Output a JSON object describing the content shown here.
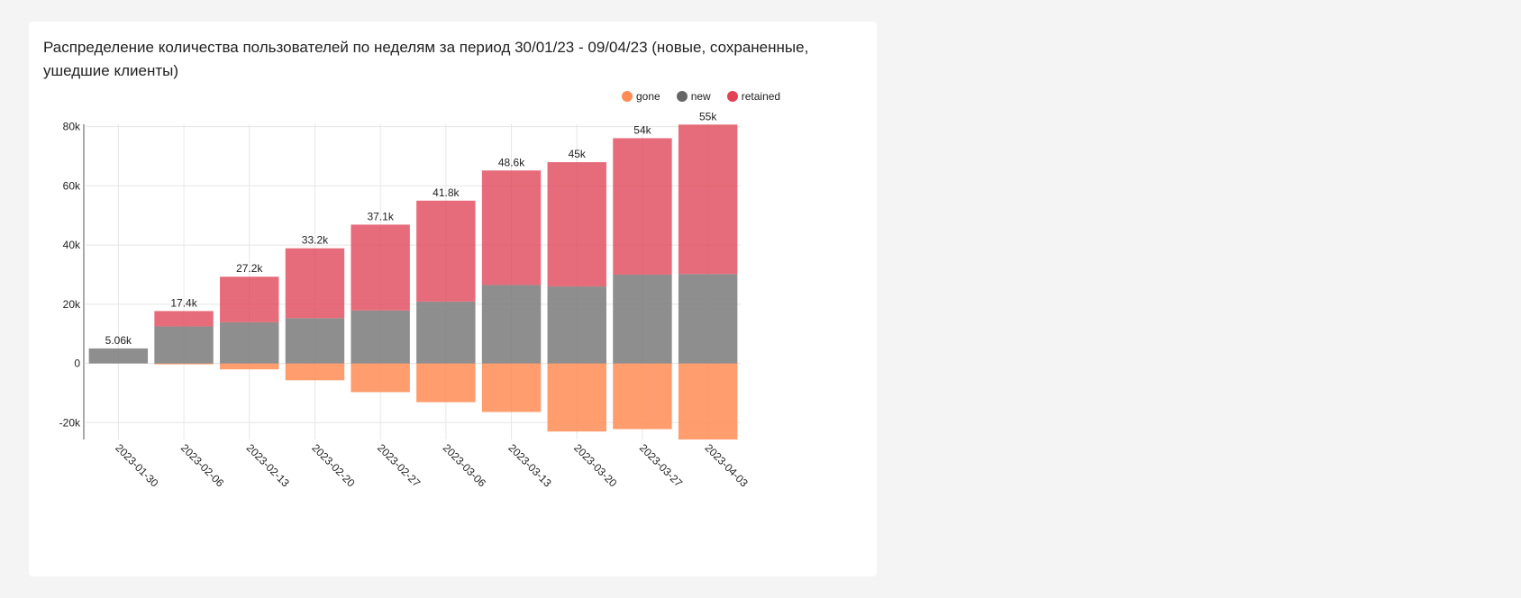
{
  "chart_data": {
    "type": "bar",
    "stacked": true,
    "title": "Распределение количества пользователей по неделям за период 30/01/23 - 09/04/23 (новые, сохраненные, ушедшие клиенты)",
    "categories": [
      "2023-01-30",
      "2023-02-06",
      "2023-02-13",
      "2023-02-20",
      "2023-02-27",
      "2023-03-06",
      "2023-03-13",
      "2023-03-20",
      "2023-03-27",
      "2023-04-03"
    ],
    "series": [
      {
        "name": "gone",
        "color": "#ff8c55",
        "values": [
          0,
          -300,
          -2000,
          -5700,
          -9700,
          -13100,
          -16400,
          -23000,
          -22200,
          -25700
        ]
      },
      {
        "name": "new",
        "color": "#7a7a7a",
        "values": [
          5060,
          12500,
          13900,
          15300,
          17900,
          20900,
          26500,
          26000,
          30000,
          30200
        ]
      },
      {
        "name": "retained",
        "color": "#e04356",
        "values": [
          0,
          5200,
          15400,
          23600,
          29000,
          34100,
          38700,
          42000,
          46100,
          50500
        ]
      }
    ],
    "total_labels": [
      "5.06k",
      "17.4k",
      "27.2k",
      "33.2k",
      "37.1k",
      "41.8k",
      "48.6k",
      "45k",
      "54k",
      "55k"
    ],
    "yticks": [
      -20000,
      0,
      20000,
      40000,
      60000,
      80000
    ],
    "ytick_labels": [
      "-20k",
      "0",
      "20k",
      "40k",
      "60k",
      "80k"
    ],
    "ylim": [
      -25700,
      80800
    ],
    "legend_position": "top-right",
    "grid": true,
    "xlabel": "",
    "ylabel": ""
  }
}
